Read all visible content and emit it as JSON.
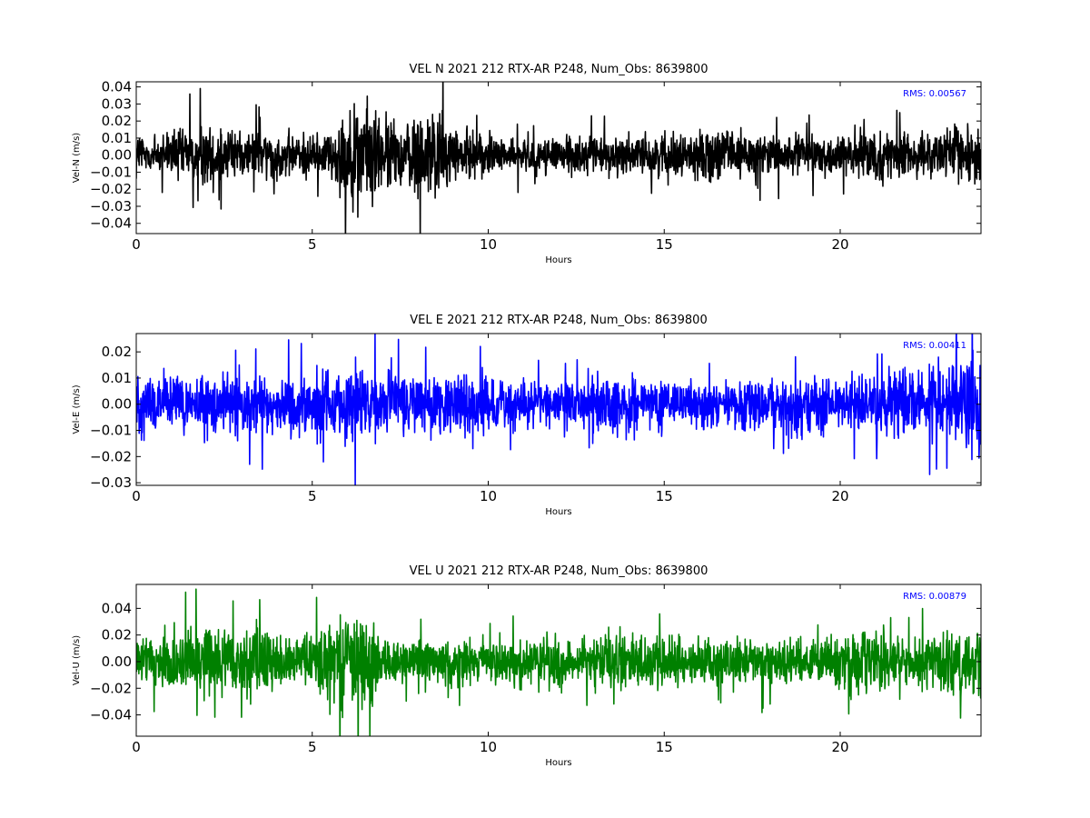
{
  "chart_data": [
    {
      "type": "line",
      "title": "VEL N 2021 212 RTX-AR  P248, Num_Obs: 8639800",
      "xlabel": "Hours",
      "ylabel": "Vel-N (m/s)",
      "xlim": [
        0,
        24
      ],
      "ylim": [
        -0.046,
        0.043
      ],
      "xticks": [
        0,
        5,
        10,
        15,
        20
      ],
      "xtick_labels": [
        "0",
        "5",
        "10",
        "15",
        "20"
      ],
      "yticks": [
        0.04,
        0.03,
        0.02,
        0.01,
        0.0,
        -0.01,
        -0.02,
        -0.03,
        -0.04
      ],
      "ytick_labels": [
        "0.04",
        "0.03",
        "0.02",
        "0.01",
        "0.00",
        "−0.01",
        "−0.02",
        "−0.03",
        "−0.04"
      ],
      "color": "#000000",
      "grid": false,
      "annotation": "RMS:  0.00567",
      "annotation_color": "#0000ff",
      "series": [
        {
          "envelope_hours": [
            0,
            0.5,
            1,
            1.5,
            2,
            2.5,
            3,
            3.5,
            4,
            4.5,
            5,
            5.5,
            6,
            6.5,
            7,
            7.5,
            8,
            8.5,
            9,
            9.5,
            10,
            10.5,
            11,
            11.5,
            12,
            12.5,
            13,
            13.5,
            14,
            14.5,
            15,
            15.5,
            16,
            16.5,
            17,
            17.5,
            18,
            18.5,
            19,
            19.5,
            20,
            20.5,
            21,
            21.5,
            22,
            22.5,
            23,
            23.5,
            24
          ],
          "envelope_amplitude": [
            0.018,
            0.016,
            0.017,
            0.02,
            0.021,
            0.019,
            0.014,
            0.016,
            0.017,
            0.015,
            0.015,
            0.016,
            0.03,
            0.038,
            0.028,
            0.02,
            0.032,
            0.03,
            0.02,
            0.015,
            0.014,
            0.013,
            0.012,
            0.012,
            0.013,
            0.012,
            0.013,
            0.014,
            0.013,
            0.015,
            0.016,
            0.013,
            0.016,
            0.018,
            0.017,
            0.015,
            0.014,
            0.013,
            0.013,
            0.013,
            0.015,
            0.018,
            0.016,
            0.015,
            0.014,
            0.014,
            0.016,
            0.024,
            0.025
          ]
        }
      ]
    },
    {
      "type": "line",
      "title": "VEL E 2021 212 RTX-AR  P248, Num_Obs: 8639800",
      "xlabel": "Hours",
      "ylabel": "Vel-E (m/s)",
      "xlim": [
        0,
        24
      ],
      "ylim": [
        -0.031,
        0.027
      ],
      "xticks": [
        0,
        5,
        10,
        15,
        20
      ],
      "xtick_labels": [
        "0",
        "5",
        "10",
        "15",
        "20"
      ],
      "yticks": [
        0.02,
        0.01,
        0.0,
        -0.01,
        -0.02,
        -0.03
      ],
      "ytick_labels": [
        "0.02",
        "0.01",
        "0.00",
        "−0.01",
        "−0.02",
        "−0.03"
      ],
      "color": "#0000ff",
      "grid": false,
      "annotation": "RMS:  0.00411",
      "annotation_color": "#0000ff",
      "series": [
        {
          "envelope_hours": [
            0,
            0.5,
            1,
            1.5,
            2,
            2.5,
            3,
            3.5,
            4,
            4.5,
            5,
            5.5,
            6,
            6.5,
            7,
            7.5,
            8,
            8.5,
            9,
            9.5,
            10,
            10.5,
            11,
            11.5,
            12,
            12.5,
            13,
            13.5,
            14,
            14.5,
            15,
            15.5,
            16,
            16.5,
            17,
            17.5,
            18,
            18.5,
            19,
            19.5,
            20,
            20.5,
            21,
            21.5,
            22,
            22.5,
            23,
            23.5,
            24
          ],
          "envelope_amplitude": [
            0.014,
            0.013,
            0.013,
            0.013,
            0.014,
            0.014,
            0.013,
            0.013,
            0.014,
            0.013,
            0.014,
            0.014,
            0.018,
            0.019,
            0.014,
            0.013,
            0.013,
            0.013,
            0.013,
            0.012,
            0.012,
            0.011,
            0.01,
            0.009,
            0.009,
            0.01,
            0.016,
            0.015,
            0.012,
            0.011,
            0.011,
            0.011,
            0.011,
            0.011,
            0.011,
            0.011,
            0.01,
            0.011,
            0.014,
            0.012,
            0.009,
            0.013,
            0.014,
            0.015,
            0.016,
            0.016,
            0.017,
            0.02,
            0.022
          ]
        }
      ]
    },
    {
      "type": "line",
      "title": "VEL U 2021 212 RTX-AR  P248, Num_Obs: 8639800",
      "xlabel": "Hours",
      "ylabel": "Vel-U (m/s)",
      "xlim": [
        0,
        24
      ],
      "ylim": [
        -0.056,
        0.058
      ],
      "xticks": [
        0,
        5,
        10,
        15,
        20
      ],
      "xtick_labels": [
        "0",
        "5",
        "10",
        "15",
        "20"
      ],
      "yticks": [
        0.04,
        0.02,
        0.0,
        -0.02,
        -0.04
      ],
      "ytick_labels": [
        "0.04",
        "0.02",
        "0.00",
        "−0.02",
        "−0.04"
      ],
      "color": "#008000",
      "grid": false,
      "annotation": "RMS:  0.00879",
      "annotation_color": "#0000ff",
      "series": [
        {
          "envelope_hours": [
            0,
            0.5,
            1,
            1.5,
            2,
            2.5,
            3,
            3.5,
            4,
            4.5,
            5,
            5.5,
            6,
            6.5,
            7,
            7.5,
            8,
            8.5,
            9,
            9.5,
            10,
            10.5,
            11,
            11.5,
            12,
            12.5,
            13,
            13.5,
            14,
            14.5,
            15,
            15.5,
            16,
            16.5,
            17,
            17.5,
            18,
            18.5,
            19,
            19.5,
            20,
            20.5,
            21,
            21.5,
            22,
            22.5,
            23,
            23.5,
            24
          ],
          "envelope_amplitude": [
            0.018,
            0.024,
            0.028,
            0.03,
            0.032,
            0.028,
            0.03,
            0.034,
            0.024,
            0.016,
            0.022,
            0.038,
            0.044,
            0.042,
            0.022,
            0.02,
            0.022,
            0.021,
            0.02,
            0.019,
            0.021,
            0.022,
            0.02,
            0.02,
            0.022,
            0.016,
            0.022,
            0.024,
            0.022,
            0.02,
            0.021,
            0.02,
            0.021,
            0.021,
            0.021,
            0.022,
            0.019,
            0.018,
            0.017,
            0.02,
            0.022,
            0.032,
            0.036,
            0.02,
            0.02,
            0.024,
            0.026,
            0.028,
            0.027
          ]
        }
      ]
    }
  ]
}
